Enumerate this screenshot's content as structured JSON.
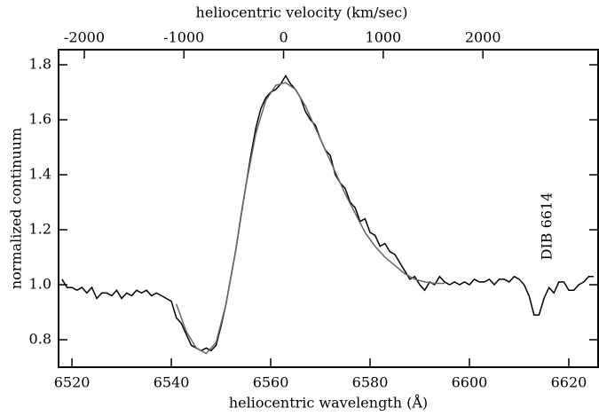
{
  "chart_data": {
    "type": "line",
    "xlabel": "heliocentric wavelength (Å)",
    "x2label": "heliocentric velocity (km/sec)",
    "ylabel": "normalized continuum",
    "annotation": "DIB 6614",
    "xlim": [
      6517.3,
      6625.9
    ],
    "xticks": [
      6520,
      6540,
      6560,
      6580,
      6600,
      6620
    ],
    "x2lim": [
      -2258,
      3156
    ],
    "x2ticks": [
      -2000,
      -1000,
      0,
      1000,
      2000
    ],
    "ylim": [
      0.7,
      1.855
    ],
    "yticks": [
      0.8,
      {
        "value": 1,
        "label": "1.0"
      },
      1.2,
      1.4,
      1.6,
      1.8
    ],
    "series": [
      {
        "color": "#000000",
        "x": [
          6518,
          6519,
          6520,
          6521,
          6522,
          6523,
          6524,
          6525,
          6526,
          6527,
          6528,
          6529,
          6530,
          6531,
          6532,
          6533,
          6534,
          6535,
          6536,
          6537,
          6538,
          6539,
          6540,
          6541,
          6542,
          6543,
          6544,
          6545,
          6546,
          6547,
          6548,
          6549,
          6550,
          6551,
          6552,
          6553,
          6554,
          6555,
          6556,
          6557,
          6558,
          6559,
          6560,
          6561,
          6562,
          6563,
          6564,
          6565,
          6566,
          6567,
          6568,
          6569,
          6570,
          6571,
          6572,
          6573,
          6574,
          6575,
          6576,
          6577,
          6578,
          6579,
          6580,
          6581,
          6582,
          6583,
          6584,
          6585,
          6586,
          6587,
          6588,
          6589,
          6590,
          6591,
          6592,
          6593,
          6594,
          6595,
          6596,
          6597,
          6598,
          6599,
          6600,
          6601,
          6602,
          6603,
          6604,
          6605,
          6606,
          6607,
          6608,
          6609,
          6610,
          6611,
          6612,
          6613,
          6614,
          6615,
          6616,
          6617,
          6618,
          6619,
          6620,
          6621,
          6622,
          6623,
          6624,
          6625
        ],
        "values": [
          1.02,
          0.99,
          0.99,
          0.98,
          0.99,
          0.97,
          0.99,
          0.95,
          0.97,
          0.97,
          0.96,
          0.98,
          0.95,
          0.97,
          0.96,
          0.98,
          0.97,
          0.98,
          0.96,
          0.97,
          0.96,
          0.95,
          0.94,
          0.88,
          0.86,
          0.82,
          0.78,
          0.77,
          0.76,
          0.77,
          0.76,
          0.78,
          0.85,
          0.93,
          1.03,
          1.13,
          1.25,
          1.36,
          1.47,
          1.57,
          1.64,
          1.68,
          1.7,
          1.71,
          1.73,
          1.76,
          1.73,
          1.71,
          1.68,
          1.63,
          1.6,
          1.58,
          1.53,
          1.49,
          1.47,
          1.4,
          1.37,
          1.35,
          1.3,
          1.28,
          1.23,
          1.24,
          1.19,
          1.18,
          1.14,
          1.15,
          1.12,
          1.11,
          1.08,
          1.05,
          1.02,
          1.03,
          1.0,
          0.98,
          1.01,
          1.0,
          1.03,
          1.01,
          1.0,
          1.01,
          1.0,
          1.01,
          1.0,
          1.02,
          1.01,
          1.01,
          1.02,
          1.0,
          1.02,
          1.02,
          1.01,
          1.03,
          1.02,
          1.0,
          0.96,
          0.89,
          0.89,
          0.95,
          0.99,
          0.97,
          1.01,
          1.01,
          0.98,
          0.98,
          1.0,
          1.01,
          1.03,
          1.03
        ]
      },
      {
        "color": "#666666",
        "x": [
          6541,
          6543,
          6545,
          6547,
          6549,
          6551,
          6553,
          6555,
          6557,
          6559,
          6561,
          6563,
          6565,
          6567,
          6569,
          6571,
          6573,
          6575,
          6577,
          6579,
          6581,
          6583,
          6585,
          6587,
          6589,
          6591,
          6593,
          6595
        ],
        "values": [
          0.93,
          0.83,
          0.77,
          0.75,
          0.79,
          0.93,
          1.13,
          1.36,
          1.55,
          1.67,
          1.725,
          1.735,
          1.71,
          1.65,
          1.57,
          1.49,
          1.41,
          1.33,
          1.26,
          1.19,
          1.14,
          1.1,
          1.07,
          1.04,
          1.02,
          1.01,
          1.005,
          1.005
        ]
      }
    ]
  }
}
